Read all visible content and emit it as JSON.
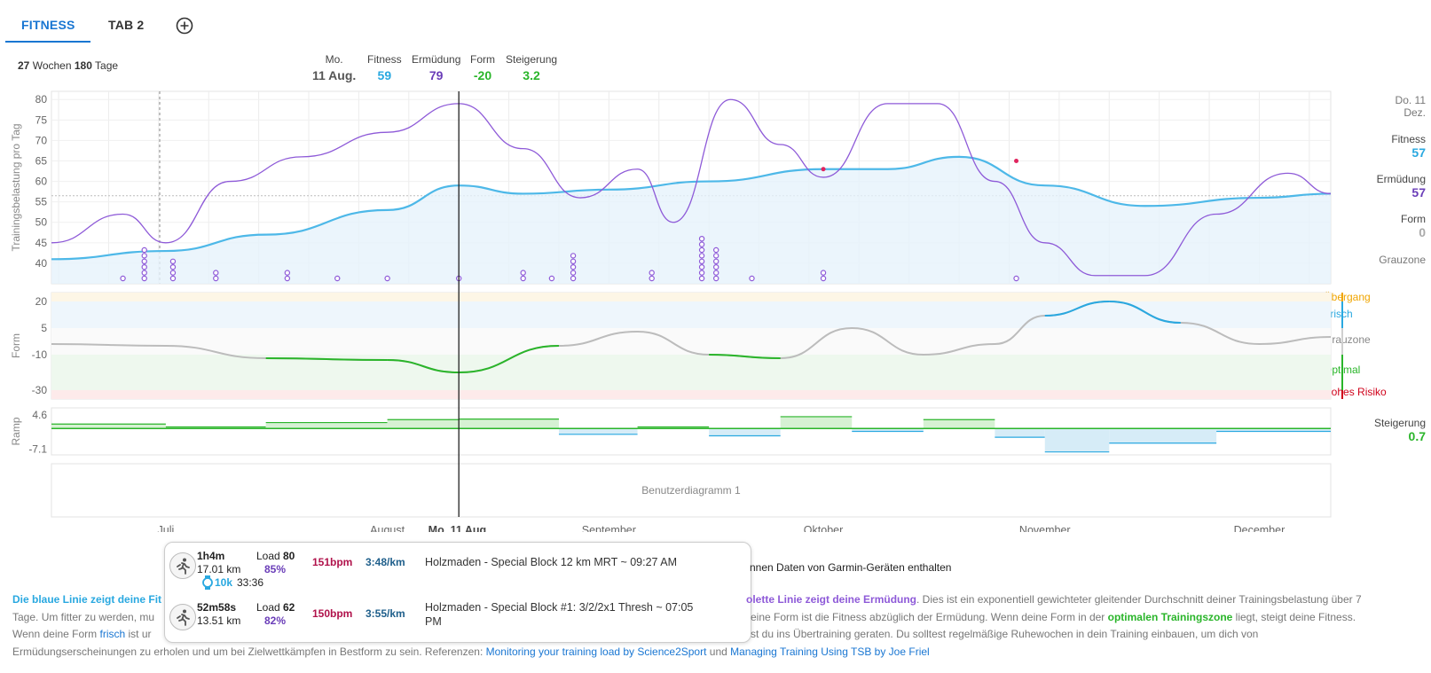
{
  "tabs": [
    {
      "label": "FITNESS"
    },
    {
      "label": "TAB 2"
    }
  ],
  "range": {
    "weeks": "27",
    "weeks_label": "Wochen",
    "days": "180",
    "days_label": "Tage"
  },
  "header_stats": {
    "date_weekday": "Mo.",
    "date": "11 Aug.",
    "fitness_label": "Fitness",
    "fitness": "59",
    "fatigue_label": "Ermüdung",
    "fatigue": "79",
    "form_label": "Form",
    "form": "-20",
    "ramp_label": "Steigerung",
    "ramp": "3.2"
  },
  "right_panel": {
    "date_line1": "Do. 11",
    "date_line2": "Dez.",
    "fitness_label": "Fitness",
    "fitness": "57",
    "fatigue_label": "Ermüdung",
    "fatigue": "57",
    "form_label": "Form",
    "form": "0",
    "zone": "Grauzone",
    "ramp_label": "Steigerung",
    "ramp": "0.7"
  },
  "zones": {
    "transition": "Übergang",
    "fresh": "Frisch",
    "grey": "Grauzone",
    "optimal": "Optimal",
    "high_risk": "Hohes Risiko"
  },
  "colors": {
    "accent": "#1976d2",
    "fitness": "#29a8e0",
    "fatigue": "#8e5ad8",
    "form_green": "#2ab52a",
    "risk": "#d0021b",
    "transition": "#f0a500",
    "grey": "#aaaaaa"
  },
  "chart_data": [
    {
      "type": "line",
      "ylabel": "Trainingsbelastung pro Tag",
      "ylim": [
        35,
        82
      ],
      "yticks": [
        40,
        45,
        50,
        55,
        60,
        65,
        70,
        75,
        80
      ],
      "x_start": "2025-06-15",
      "x_end": "2025-12-11",
      "months": [
        "Juli",
        "August",
        "September",
        "Oktober",
        "November",
        "December"
      ],
      "crosshair_label": "Mo. 11 Aug.",
      "series": [
        {
          "name": "Fitness",
          "x": [
            "2025-06-15",
            "2025-07-01",
            "2025-07-15",
            "2025-08-01",
            "2025-08-11",
            "2025-08-20",
            "2025-09-01",
            "2025-09-15",
            "2025-10-01",
            "2025-10-10",
            "2025-10-20",
            "2025-11-01",
            "2025-11-15",
            "2025-12-01",
            "2025-12-11"
          ],
          "y": [
            41,
            43,
            47,
            53,
            59,
            57,
            58,
            60,
            63,
            63,
            66,
            59,
            54,
            56,
            57
          ]
        },
        {
          "name": "Ermüdung",
          "x": [
            "2025-06-15",
            "2025-06-25",
            "2025-07-01",
            "2025-07-10",
            "2025-07-20",
            "2025-08-01",
            "2025-08-11",
            "2025-08-20",
            "2025-08-28",
            "2025-09-05",
            "2025-09-10",
            "2025-09-18",
            "2025-09-25",
            "2025-10-01",
            "2025-10-10",
            "2025-10-17",
            "2025-10-25",
            "2025-11-01",
            "2025-11-08",
            "2025-11-15",
            "2025-11-25",
            "2025-12-05",
            "2025-12-11"
          ],
          "y": [
            45,
            52,
            45,
            60,
            66,
            72,
            79,
            68,
            56,
            63,
            50,
            80,
            69,
            61,
            79,
            79,
            60,
            45,
            37,
            37,
            52,
            62,
            57
          ]
        }
      ],
      "load_columns": [
        {
          "x": "2025-06-25",
          "count": 1
        },
        {
          "x": "2025-06-28",
          "count": 6
        },
        {
          "x": "2025-07-02",
          "count": 4
        },
        {
          "x": "2025-07-08",
          "count": 2
        },
        {
          "x": "2025-07-18",
          "count": 2
        },
        {
          "x": "2025-07-25",
          "count": 1
        },
        {
          "x": "2025-08-01",
          "count": 1
        },
        {
          "x": "2025-08-11",
          "count": 1
        },
        {
          "x": "2025-08-20",
          "count": 2
        },
        {
          "x": "2025-08-24",
          "count": 1
        },
        {
          "x": "2025-08-27",
          "count": 5
        },
        {
          "x": "2025-09-07",
          "count": 2
        },
        {
          "x": "2025-09-14",
          "count": 8
        },
        {
          "x": "2025-09-16",
          "count": 6
        },
        {
          "x": "2025-09-21",
          "count": 1
        },
        {
          "x": "2025-10-01",
          "count": 2
        },
        {
          "x": "2025-10-28",
          "count": 1
        }
      ]
    },
    {
      "type": "line",
      "ylabel": "Form",
      "ylim": [
        -35,
        25
      ],
      "yticks": [
        20,
        5,
        -10,
        -30
      ],
      "series": [
        {
          "name": "Form",
          "x": [
            "2025-06-15",
            "2025-07-01",
            "2025-07-15",
            "2025-08-01",
            "2025-08-11",
            "2025-08-25",
            "2025-09-05",
            "2025-09-15",
            "2025-09-25",
            "2025-10-05",
            "2025-10-15",
            "2025-10-25",
            "2025-11-01",
            "2025-11-10",
            "2025-11-20",
            "2025-12-01",
            "2025-12-11"
          ],
          "y": [
            -4,
            -5,
            -12,
            -13,
            -20,
            -5,
            3,
            -10,
            -12,
            5,
            -10,
            -4,
            12,
            20,
            8,
            -4,
            0
          ]
        }
      ]
    },
    {
      "type": "area",
      "ylabel": "Ramp",
      "ylim": [
        -9,
        7
      ],
      "yticks": [
        4.6,
        -7.1
      ],
      "series": [
        {
          "name": "Steigerung",
          "x": [
            "2025-06-15",
            "2025-07-01",
            "2025-07-15",
            "2025-08-01",
            "2025-08-11",
            "2025-08-25",
            "2025-09-05",
            "2025-09-15",
            "2025-09-25",
            "2025-10-05",
            "2025-10-15",
            "2025-10-25",
            "2025-11-01",
            "2025-11-10",
            "2025-11-25",
            "2025-12-11"
          ],
          "y": [
            1.5,
            0.5,
            2,
            3,
            3.2,
            -2,
            0.5,
            -2.5,
            4,
            -1,
            3,
            -3,
            -8,
            -5,
            -1,
            0.7
          ]
        }
      ]
    },
    {
      "type": "custom",
      "title": "Benutzerdiagramm 1"
    }
  ],
  "popup": {
    "activities": [
      {
        "duration": "1h4m",
        "distance": "17.01 km",
        "load_label": "Load",
        "load": "80",
        "intensity": "85%",
        "hr": "151bpm",
        "pace": "3:48/km",
        "title": "Holzmaden - Special Block 12 km MRT ~ 09:27 AM",
        "best_label": "10k",
        "best_time": "33:36"
      },
      {
        "duration": "52m58s",
        "distance": "13.51 km",
        "load_label": "Load",
        "load": "62",
        "intensity": "82%",
        "hr": "150bpm",
        "pace": "3:55/km",
        "title": "Holzmaden - Special Block #1: 3/2/2x1 Thresh ~ 07:05",
        "title_cont": "PM"
      }
    ]
  },
  "garmin_note": "nnen Daten von Garmin-Geräten enthalten",
  "description": {
    "p1_blue": "Die blaue Linie zeigt deine Fit",
    "p1_violet": "olette Linie zeigt deine Ermüdung",
    "p1_rest": ". Dies ist ein exponentiell gewichteter gleitender Durchschnitt deiner Trainingsbelastung über 7",
    "l2_a": "Tage. Um fitter zu werden, mu",
    "l2_b": "eine Form ist die Fitness abzüglich der Ermüdung. Wenn deine Form in der ",
    "l2_green": "optimalen Trainingszone",
    "l2_c": " liegt, steigt deine Fitness.",
    "l3_a": "Wenn deine Form ",
    "l3_link": "frisch",
    "l3_b": " ist ur",
    "l3_c": "st du ins Übertraining geraten. Du solltest regelmäßige Ruhewochen in dein Training einbauen, um dich von",
    "l4_a": "Ermüdungserscheinungen zu erholen und um bei Zielwettkämpfen in Bestform zu sein. Referenzen: ",
    "link1": "Monitoring your training load by Science2Sport",
    "and": " und ",
    "link2": "Managing Training Using TSB by Joe Friel"
  }
}
